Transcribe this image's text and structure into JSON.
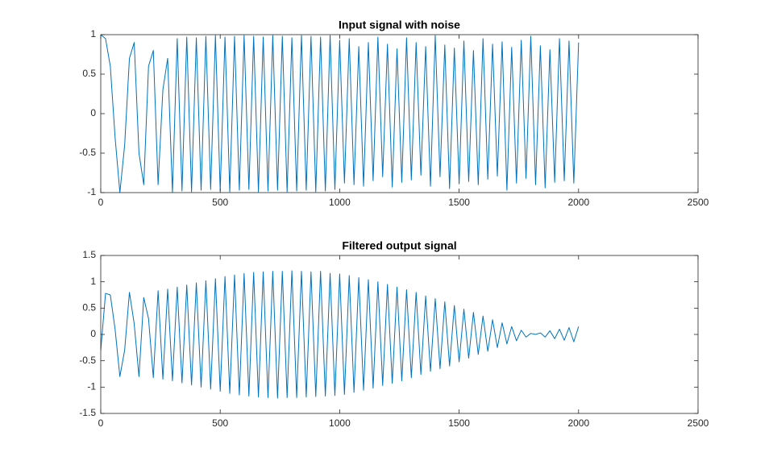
{
  "chart_data": [
    {
      "type": "line",
      "title": "Input signal with noise",
      "color": "#0072bd",
      "x": [
        0,
        20,
        40,
        60,
        80,
        100,
        120,
        140,
        160,
        180,
        200,
        220,
        240,
        260,
        280,
        300,
        320,
        340,
        360,
        380,
        400,
        420,
        440,
        460,
        480,
        500,
        520,
        540,
        560,
        580,
        600,
        620,
        640,
        660,
        680,
        700,
        720,
        740,
        760,
        780,
        800,
        820,
        840,
        860,
        880,
        900,
        920,
        940,
        960,
        980,
        1000,
        1020,
        1040,
        1060,
        1080,
        1100,
        1120,
        1140,
        1160,
        1180,
        1200,
        1220,
        1240,
        1260,
        1280,
        1300,
        1320,
        1340,
        1360,
        1380,
        1400,
        1420,
        1440,
        1460,
        1480,
        1500,
        1520,
        1540,
        1560,
        1580,
        1600,
        1620,
        1640,
        1660,
        1680,
        1700,
        1720,
        1740,
        1760,
        1780,
        1800,
        1820,
        1840,
        1860,
        1880,
        1900,
        1920,
        1940,
        1960,
        1980,
        2000
      ],
      "values": [
        1,
        0.95,
        0.6,
        -0.3,
        -1,
        -0.4,
        0.7,
        0.9,
        -0.5,
        -0.9,
        0.6,
        0.8,
        -0.9,
        0.3,
        0.7,
        -1,
        0.95,
        -0.98,
        0.97,
        -0.99,
        0.96,
        -0.97,
        0.98,
        -0.96,
        0.99,
        -0.98,
        0.97,
        -0.99,
        0.98,
        -0.97,
        0.99,
        -0.96,
        0.98,
        -0.99,
        0.97,
        -0.98,
        0.99,
        -0.97,
        0.98,
        -0.99,
        0.96,
        -0.98,
        0.99,
        -0.97,
        0.98,
        -0.99,
        0.97,
        -0.98,
        0.99,
        -0.96,
        0.93,
        -0.88,
        0.95,
        -0.9,
        0.85,
        -0.92,
        0.9,
        -0.85,
        0.97,
        -0.8,
        0.88,
        -0.93,
        0.82,
        -0.87,
        0.96,
        -0.84,
        0.9,
        -0.78,
        0.85,
        -0.92,
        0.99,
        -0.8,
        0.87,
        -0.95,
        0.83,
        -0.89,
        0.92,
        -0.86,
        0.8,
        -0.9,
        0.95,
        -0.83,
        0.88,
        -0.79,
        0.91,
        -0.97,
        0.84,
        -0.88,
        0.93,
        -0.82,
        0.98,
        -0.9,
        0.86,
        -0.94,
        0.81,
        -0.87,
        0.95,
        -0.85,
        0.92,
        -0.88,
        0.9
      ],
      "xlim": [
        0,
        2500
      ],
      "xticks": [
        0,
        500,
        1000,
        1500,
        2000,
        2500
      ],
      "ylim": [
        -1,
        1
      ],
      "yticks": [
        -1,
        -0.5,
        0,
        0.5,
        1
      ]
    },
    {
      "type": "line",
      "title": "Filtered output signal",
      "color": "#0072bd",
      "x": [
        0,
        20,
        40,
        60,
        80,
        100,
        120,
        140,
        160,
        180,
        200,
        220,
        240,
        260,
        280,
        300,
        320,
        340,
        360,
        380,
        400,
        420,
        440,
        460,
        480,
        500,
        520,
        540,
        560,
        580,
        600,
        620,
        640,
        660,
        680,
        700,
        720,
        740,
        760,
        780,
        800,
        820,
        840,
        860,
        880,
        900,
        920,
        940,
        960,
        980,
        1000,
        1020,
        1040,
        1060,
        1080,
        1100,
        1120,
        1140,
        1160,
        1180,
        1200,
        1220,
        1240,
        1260,
        1280,
        1300,
        1320,
        1340,
        1360,
        1380,
        1400,
        1420,
        1440,
        1460,
        1480,
        1500,
        1520,
        1540,
        1560,
        1580,
        1600,
        1620,
        1640,
        1660,
        1680,
        1700,
        1720,
        1740,
        1760,
        1780,
        1800,
        1820,
        1840,
        1860,
        1880,
        1900,
        1920,
        1940,
        1960,
        1980,
        2000
      ],
      "values": [
        -0.3,
        0.78,
        0.75,
        0.1,
        -0.8,
        -0.3,
        0.8,
        0.2,
        -0.8,
        0.7,
        0.3,
        -0.82,
        0.83,
        -0.85,
        0.86,
        -0.88,
        0.9,
        -0.92,
        0.94,
        -0.96,
        0.98,
        -1.0,
        1.02,
        -1.04,
        1.06,
        -1.08,
        1.1,
        -1.12,
        1.13,
        -1.15,
        1.16,
        -1.17,
        1.18,
        -1.19,
        1.19,
        -1.2,
        1.2,
        -1.21,
        1.2,
        -1.2,
        1.21,
        -1.2,
        1.2,
        -1.19,
        1.19,
        -1.18,
        1.2,
        -1.17,
        1.16,
        -1.16,
        1.15,
        -1.14,
        1.12,
        -1.1,
        1.08,
        -1.06,
        1.04,
        -1.02,
        1.0,
        -0.97,
        0.95,
        -0.93,
        0.9,
        -0.88,
        0.85,
        -0.82,
        0.8,
        -0.76,
        0.73,
        -0.7,
        0.68,
        -0.65,
        0.62,
        -0.6,
        0.55,
        -0.52,
        0.48,
        -0.45,
        0.42,
        -0.38,
        0.35,
        -0.32,
        0.28,
        -0.25,
        0.22,
        -0.18,
        0.15,
        -0.12,
        0.08,
        -0.05,
        0.02,
        0,
        0.03,
        -0.05,
        0.07,
        -0.08,
        0.1,
        -0.11,
        0.13,
        -0.14,
        0.15
      ],
      "xlim": [
        0,
        2500
      ],
      "xticks": [
        0,
        500,
        1000,
        1500,
        2000,
        2500
      ],
      "ylim": [
        -1.5,
        1.5
      ],
      "yticks": [
        -1.5,
        -1,
        -0.5,
        0,
        0.5,
        1,
        1.5
      ]
    }
  ]
}
